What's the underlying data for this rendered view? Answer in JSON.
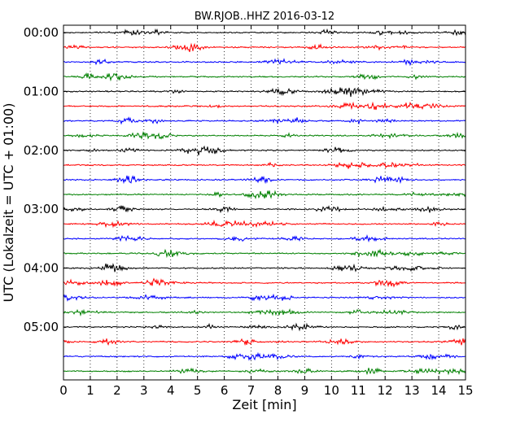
{
  "chart_data": {
    "type": "line",
    "title": "BW.RJOB..HHZ 2016-03-12",
    "xlabel": "Zeit  [min]",
    "ylabel": "UTC (Lokalzeit = UTC + 01:00)",
    "xlim": [
      0,
      15
    ],
    "x_ticks": [
      "0",
      "1",
      "2",
      "3",
      "4",
      "5",
      "6",
      "7",
      "8",
      "9",
      "10",
      "11",
      "12",
      "13",
      "14",
      "15"
    ],
    "y_ticks": [
      {
        "label": "00:00",
        "row": 0
      },
      {
        "label": "01:00",
        "row": 4
      },
      {
        "label": "02:00",
        "row": 8
      },
      {
        "label": "03:00",
        "row": 12
      },
      {
        "label": "04:00",
        "row": 16
      },
      {
        "label": "05:00",
        "row": 20
      }
    ],
    "grid": "vertical dotted",
    "row_count": 24,
    "row_minutes": 15,
    "series_colors": [
      "#000000",
      "#ff0000",
      "#0000ff",
      "#008000"
    ]
  }
}
